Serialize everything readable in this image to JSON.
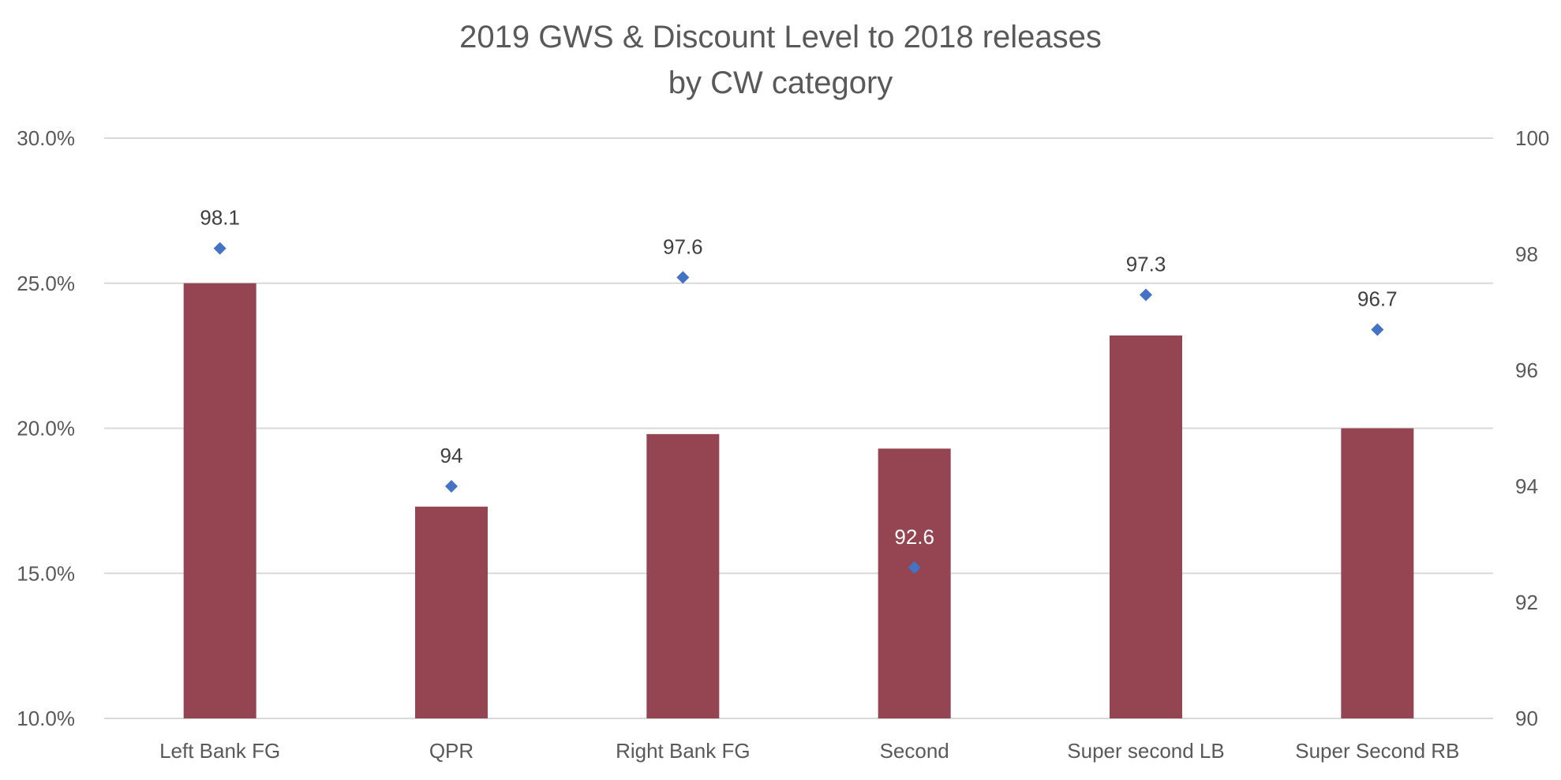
{
  "chart_data": {
    "type": "bar",
    "title_lines": [
      "2019 GWS & Discount Level to 2018 releases",
      "by CW category"
    ],
    "categories": [
      "Left Bank FG",
      "QPR",
      "Right Bank FG",
      "Second",
      "Super second LB",
      "Super Second RB"
    ],
    "series": [
      {
        "type": "bar",
        "axis": "left",
        "values": [
          25.0,
          17.3,
          19.8,
          19.3,
          23.2,
          20.0
        ],
        "color": "#954552"
      },
      {
        "type": "scatter",
        "axis": "right",
        "values": [
          98.1,
          94,
          97.6,
          92.6,
          97.3,
          96.7
        ],
        "labels": [
          "98.1",
          "94",
          "97.6",
          "92.6",
          "97.3",
          "96.7"
        ],
        "color": "#4472C4"
      }
    ],
    "left_axis": {
      "ticks": [
        "10.0%",
        "15.0%",
        "20.0%",
        "25.0%",
        "30.0%"
      ],
      "range": [
        10,
        30
      ],
      "unit": "%"
    },
    "right_axis": {
      "ticks": [
        "90",
        "92",
        "94",
        "96",
        "98",
        "100"
      ],
      "range": [
        90,
        100
      ]
    },
    "grid": true,
    "legend": "none",
    "colors": {
      "bar": "#954552",
      "marker": "#4472C4",
      "grid": "#d9d9d9",
      "text": "#595959",
      "label_dark": "#404040",
      "label_light": "#ffffff"
    }
  }
}
